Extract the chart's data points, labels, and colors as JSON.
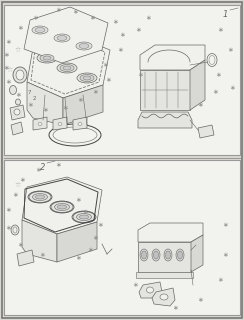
{
  "bg_outer": "#d8d8d0",
  "bg_panel": "#f2f2ee",
  "border_color": "#999999",
  "line_color": "#666666",
  "dark_line": "#444444",
  "fill_light": "#f0f0ec",
  "fill_mid": "#e4e4e0",
  "fill_dark": "#d8d8d4",
  "marker_color": "#888888",
  "text_color": "#666666",
  "marker_symbol": "∗",
  "open_star": "☆",
  "section1_label": "1",
  "section2_label": "2"
}
